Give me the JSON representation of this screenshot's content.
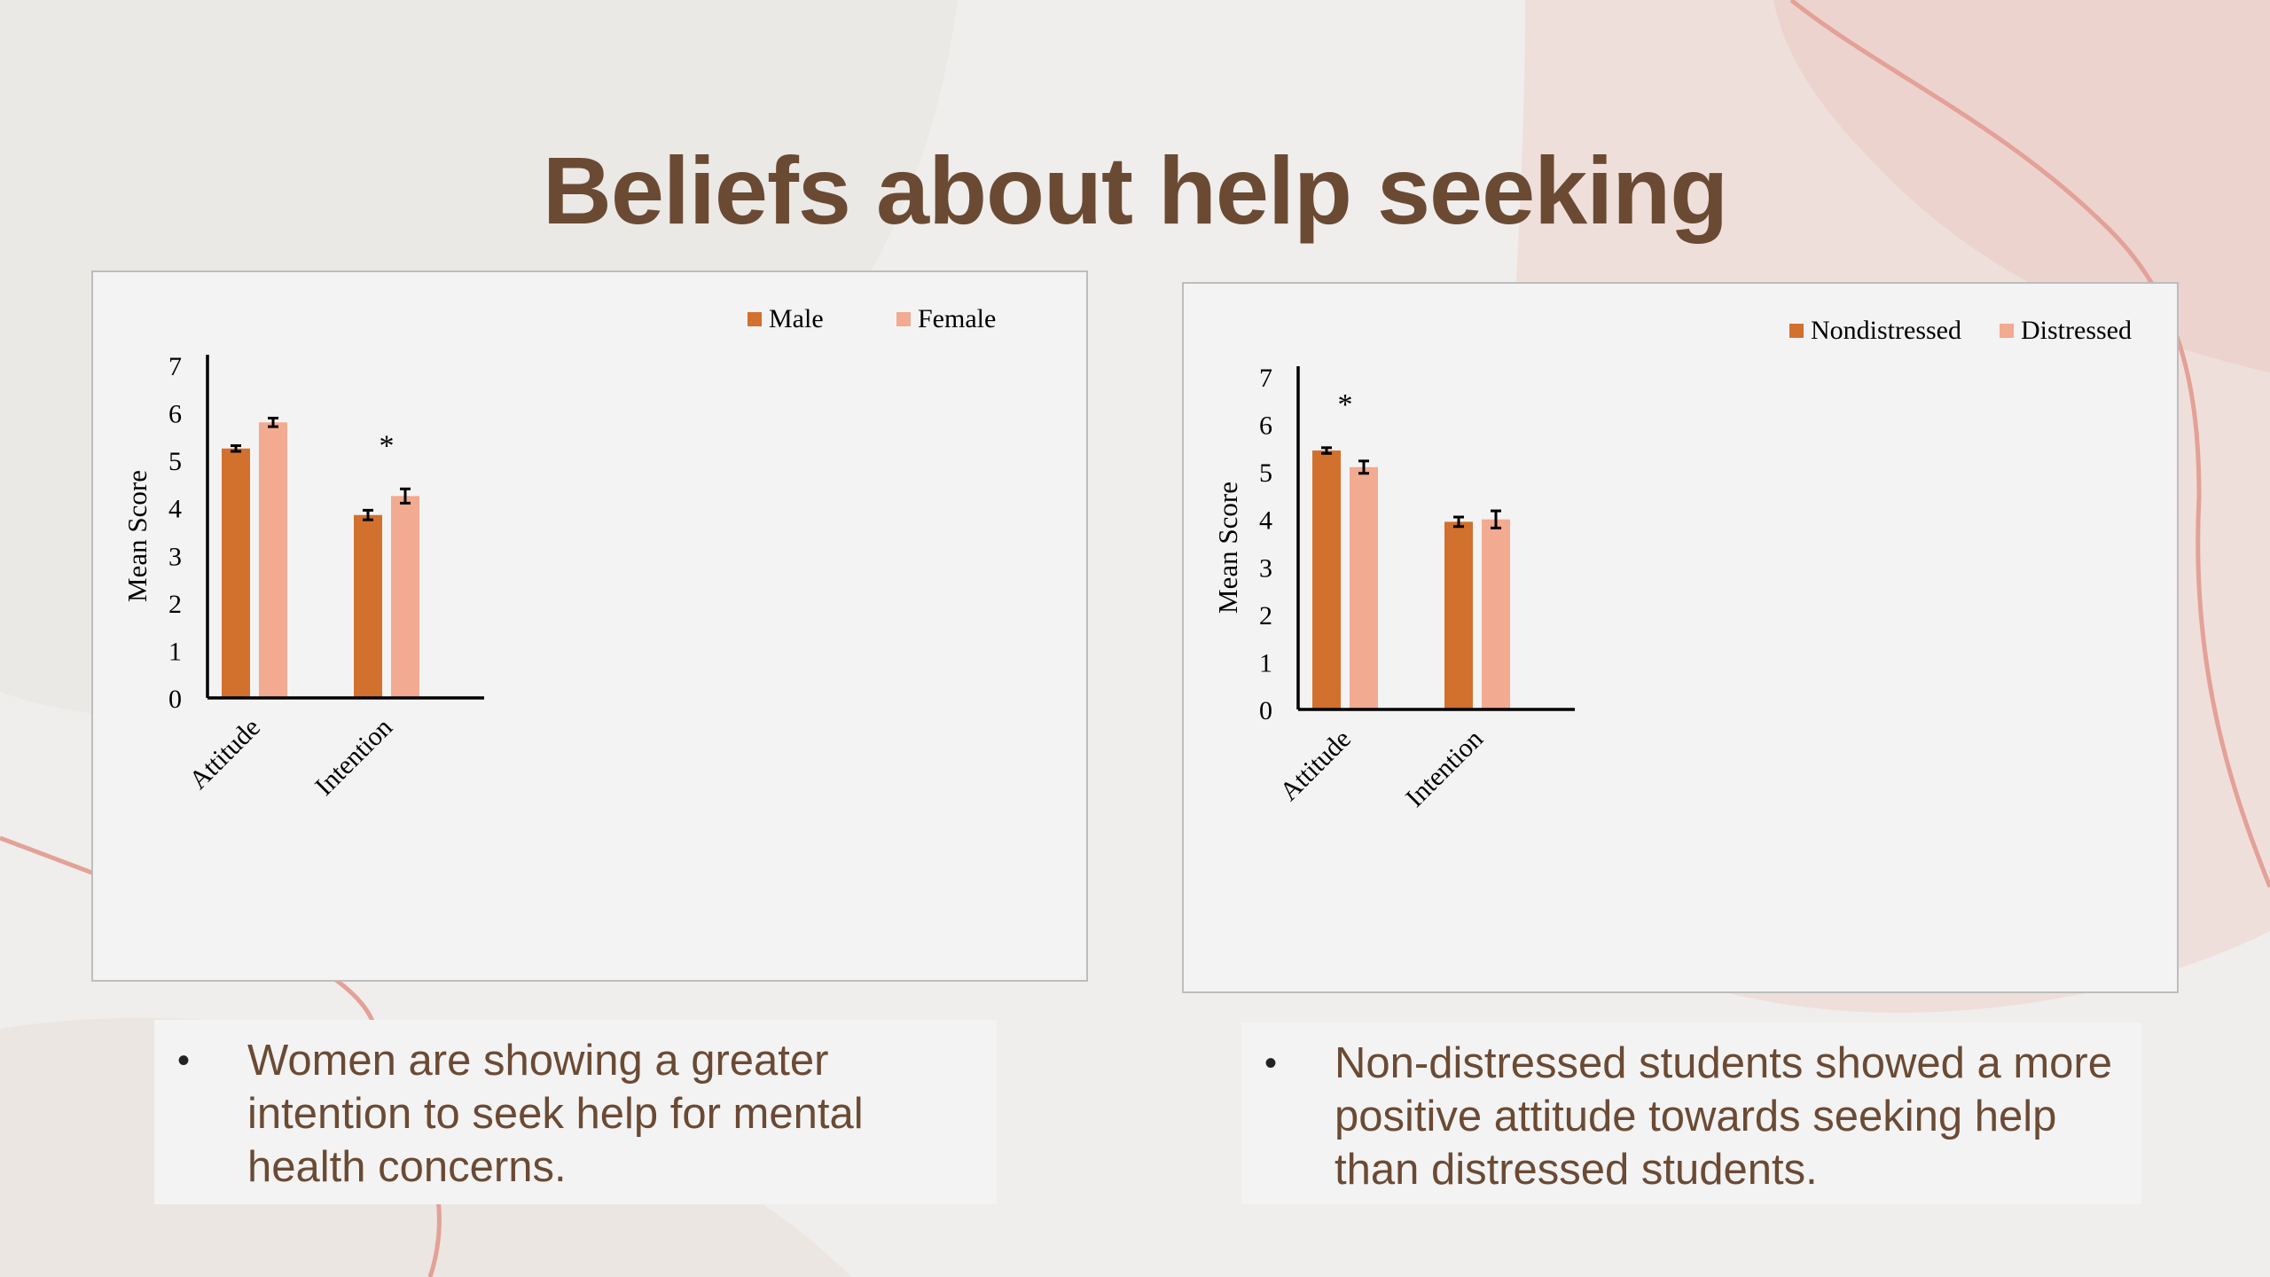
{
  "slide": {
    "title": "Beliefs about help seeking",
    "colors": {
      "background": "#efeeec",
      "title": "#6b4a34",
      "dark_bar": "#d2702e",
      "light_bar": "#f2aa90",
      "accent_line": "#e3a197"
    }
  },
  "captions": [
    {
      "bullet": "•",
      "text": "Women are showing a greater intention to seek help for mental health concerns."
    },
    {
      "bullet": "•",
      "text": "Non-distressed students showed a more positive attitude towards seeking help than distressed students."
    }
  ],
  "chart_data": [
    {
      "type": "bar",
      "categories": [
        "Attitude",
        "Intention"
      ],
      "series": [
        {
          "name": "Male",
          "values": [
            5.25,
            3.85
          ],
          "error": [
            0.06,
            0.1
          ],
          "color": "#d2702e"
        },
        {
          "name": "Female",
          "values": [
            5.8,
            4.25
          ],
          "error": [
            0.09,
            0.15
          ],
          "color": "#f2aa90"
        }
      ],
      "ylabel": "Mean Score",
      "ylim": [
        0,
        7
      ],
      "yticks": [
        "0",
        "1",
        "2",
        "3",
        "4",
        "5",
        "6",
        "7"
      ],
      "legend": "top-right",
      "grid": false,
      "annotations": [
        {
          "category": "Intention",
          "text": "*"
        }
      ]
    },
    {
      "type": "bar",
      "categories": [
        "Attitude",
        "Intention"
      ],
      "series": [
        {
          "name": "Nondistressed",
          "values": [
            5.45,
            3.95
          ],
          "error": [
            0.06,
            0.1
          ],
          "color": "#d2702e"
        },
        {
          "name": "Distressed",
          "values": [
            5.1,
            4.0
          ],
          "error": [
            0.13,
            0.18
          ],
          "color": "#f2aa90"
        }
      ],
      "ylabel": "Mean Score",
      "ylim": [
        0,
        7
      ],
      "yticks": [
        "0",
        "1",
        "2",
        "3",
        "4",
        "5",
        "6",
        "7"
      ],
      "legend": "top-right",
      "grid": false,
      "annotations": [
        {
          "category": "Attitude",
          "text": "*"
        }
      ]
    }
  ]
}
